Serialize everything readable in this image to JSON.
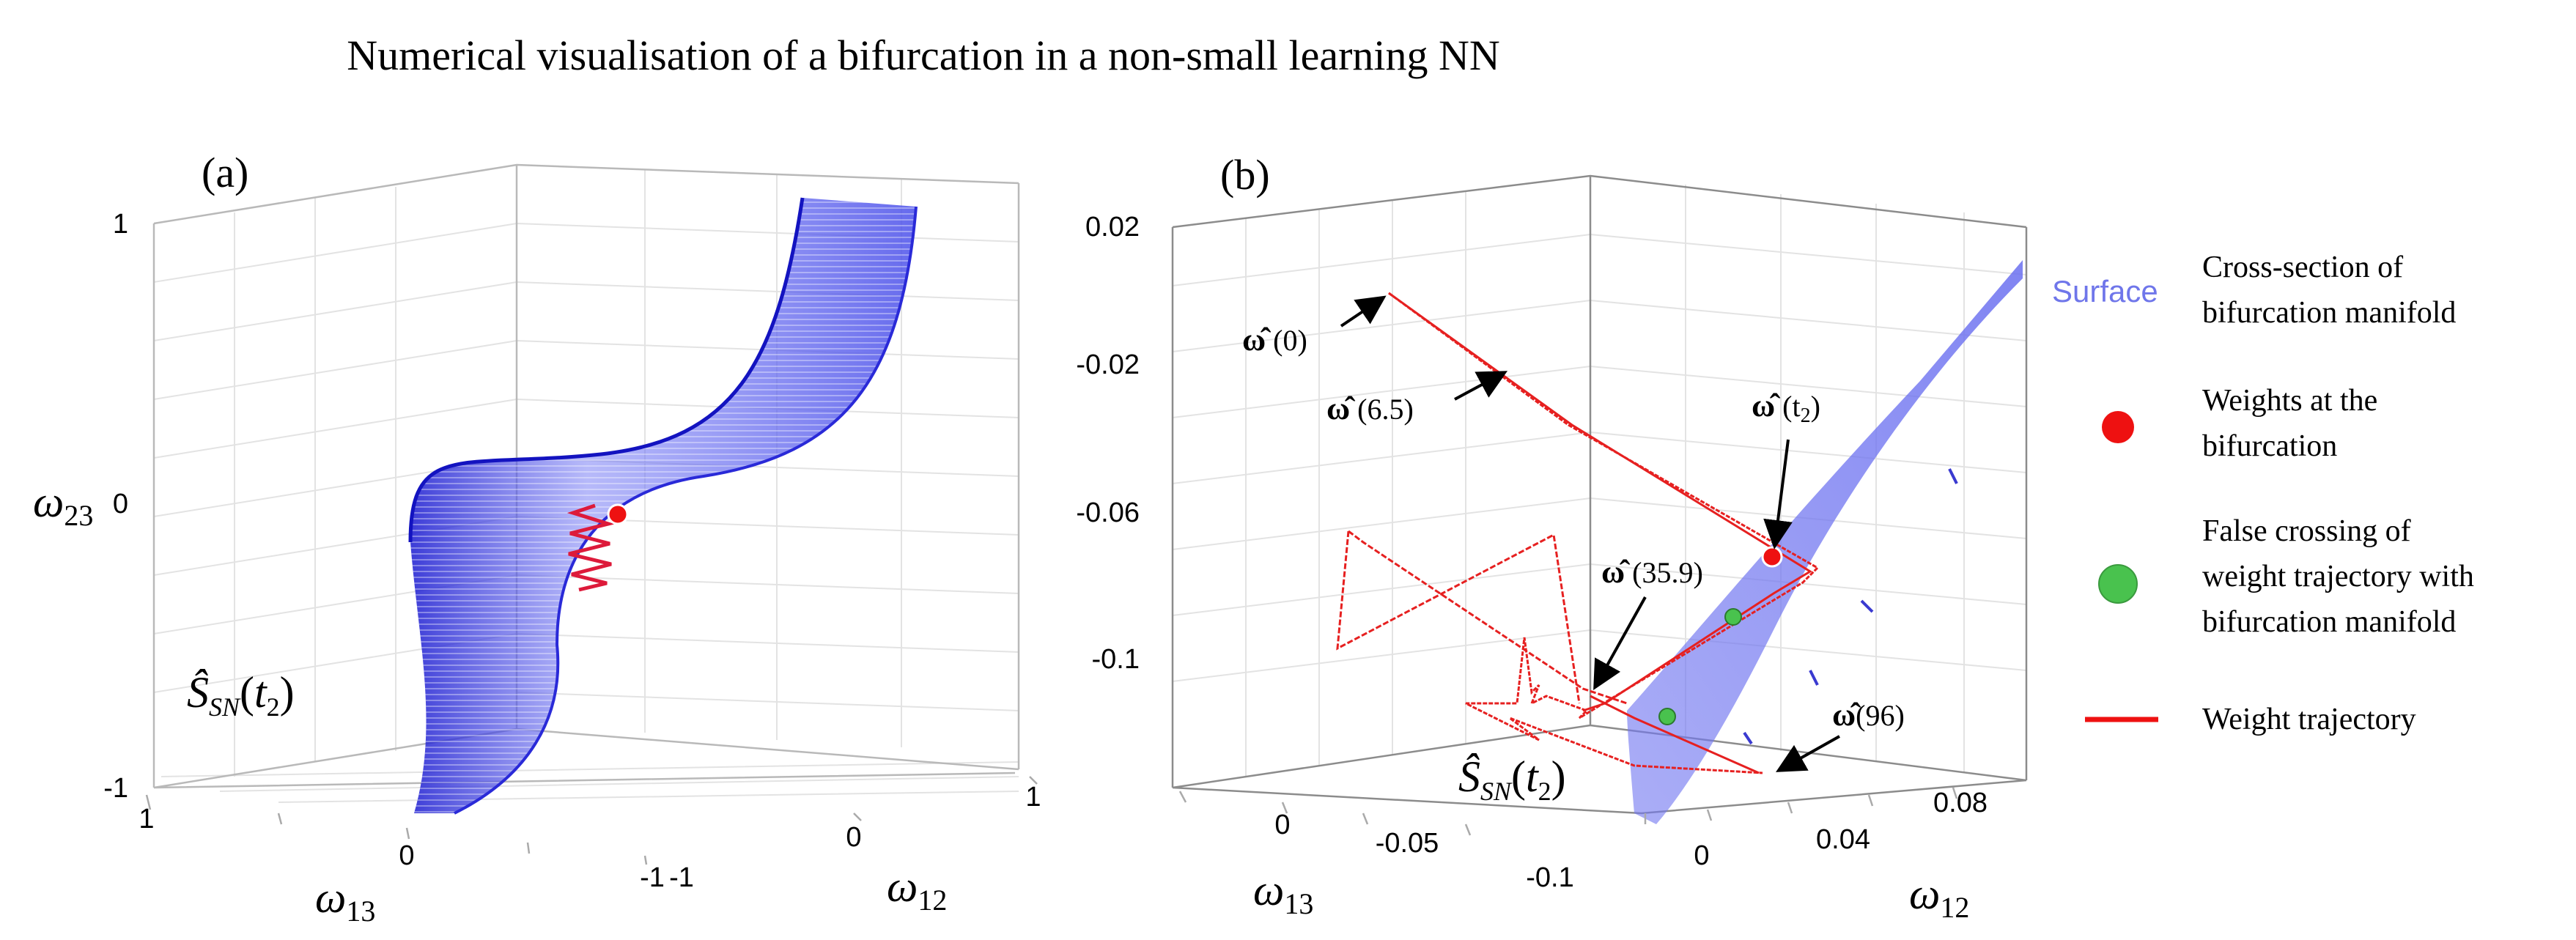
{
  "title": "Numerical visualisation of a bifurcation in a non-small learning NN",
  "colors": {
    "surface": "#5a5ff0",
    "surface_dark": "#1616c8",
    "trajectory": "#ee2222",
    "bifurcation_point": "#ee1111",
    "false_crossing": "#49c24e"
  },
  "panel_a": {
    "label": "(a)",
    "z_axis_label": "ω23",
    "x_axis_label": "ω13",
    "y_axis_label": "ω12",
    "z_ticks": [
      "1",
      "0",
      "-1"
    ],
    "x_ticks": [
      "1",
      "0",
      "-1"
    ],
    "y_ticks": [
      "-1",
      "0",
      "1"
    ],
    "surface_label": "Ŝ_SN(t2)"
  },
  "panel_b": {
    "label": "(b)",
    "z_axis_label": "ω23",
    "x_axis_label": "ω13",
    "y_axis_label": "ω12",
    "z_ticks": [
      "0.02",
      "-0.02",
      "-0.06",
      "-0.1"
    ],
    "x_ticks": [
      "0",
      "-0.05",
      "-0.1"
    ],
    "y_ticks": [
      "0",
      "0.04",
      "0.08"
    ],
    "surface_label": "Ŝ_SN(t2)",
    "annotations": [
      {
        "symbol": "ω̂",
        "value": "(0)"
      },
      {
        "symbol": "ω̂",
        "value": "(6.5)"
      },
      {
        "symbol": "ω̂",
        "value": "(t2)"
      },
      {
        "symbol": "ω̂",
        "value": "(35.9)"
      },
      {
        "symbol": "ω̂",
        "value": "(96)"
      }
    ]
  },
  "legend": [
    {
      "key": "Surface",
      "lines": [
        "Cross-section of",
        "bifurcation manifold"
      ]
    },
    {
      "key": "red-dot",
      "lines": [
        "Weights at the",
        "bifurcation"
      ]
    },
    {
      "key": "green-dot",
      "lines": [
        "False crossing of",
        "weight trajectory with",
        "bifurcation manifold"
      ]
    },
    {
      "key": "red-line",
      "lines": [
        "Weight trajectory"
      ]
    }
  ]
}
